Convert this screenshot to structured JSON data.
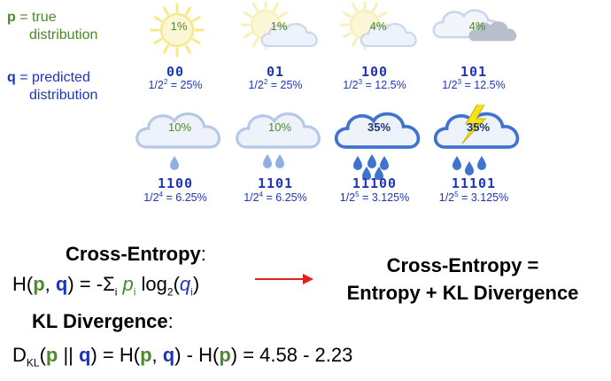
{
  "legend": {
    "p_symbol": "p",
    "p_text_line1": "= true",
    "p_text_line2": "distribution",
    "q_symbol": "q",
    "q_text_line1": "= predicted",
    "q_text_line2": "distribution"
  },
  "tiles": [
    {
      "pct": "1%",
      "code": "00",
      "prob_base": "1/2",
      "prob_exp": "2",
      "prob_val": " = 25%",
      "icon": "sun-icon"
    },
    {
      "pct": "1%",
      "code": "01",
      "prob_base": "1/2",
      "prob_exp": "2",
      "prob_val": " = 25%",
      "icon": "sun-cloud-icon"
    },
    {
      "pct": "4%",
      "code": "100",
      "prob_base": "1/2",
      "prob_exp": "3",
      "prob_val": " = 12.5%",
      "icon": "sun-cloud-icon"
    },
    {
      "pct": "4%",
      "code": "101",
      "prob_base": "1/2",
      "prob_exp": "3",
      "prob_val": " = 12.5%",
      "icon": "cloudy-icon"
    },
    {
      "pct": "10%",
      "code": "1100",
      "prob_base": "1/2",
      "prob_exp": "4",
      "prob_val": " = 6.25%",
      "icon": "light-rain-icon"
    },
    {
      "pct": "10%",
      "code": "1101",
      "prob_base": "1/2",
      "prob_exp": "4",
      "prob_val": " = 6.25%",
      "icon": "rain-icon"
    },
    {
      "pct": "35%",
      "code": "11100",
      "prob_base": "1/2",
      "prob_exp": "5",
      "prob_val": " = 3.125%",
      "icon": "heavy-rain-icon"
    },
    {
      "pct": "35%",
      "code": "11101",
      "prob_base": "1/2",
      "prob_exp": "5",
      "prob_val": " = 3.125%",
      "icon": "thunderstorm-icon"
    }
  ],
  "cross_entropy": {
    "heading": "Cross-Entropy",
    "colon": ":",
    "H": "H(",
    "p": "p",
    "comma": ", ",
    "q": "q",
    "rhs_start": ") = -Σ",
    "i1": "i",
    "pi": " p",
    "i2": "i",
    "log": " log",
    "two": "2",
    "open": "(",
    "qi": "q",
    "i3": "i",
    "close": ")"
  },
  "equation": {
    "line1": "Cross-Entropy =",
    "line2": "Entropy + KL Divergence"
  },
  "kl": {
    "heading": "KL Divergence",
    "colon": ":",
    "D": "D",
    "KL": "KL",
    "open": "(",
    "p": "p",
    "bars": " || ",
    "q": "q",
    "eqH": ") = H(",
    "p2": "p",
    "comma": ", ",
    "q2": "q",
    "minusH": ") - H(",
    "p3": "p",
    "close": ")",
    "value": " = 4.58 - 2.23"
  },
  "colors": {
    "green": "#4a8a2a",
    "blue": "#1f35b8",
    "arrow": "#e02020"
  }
}
